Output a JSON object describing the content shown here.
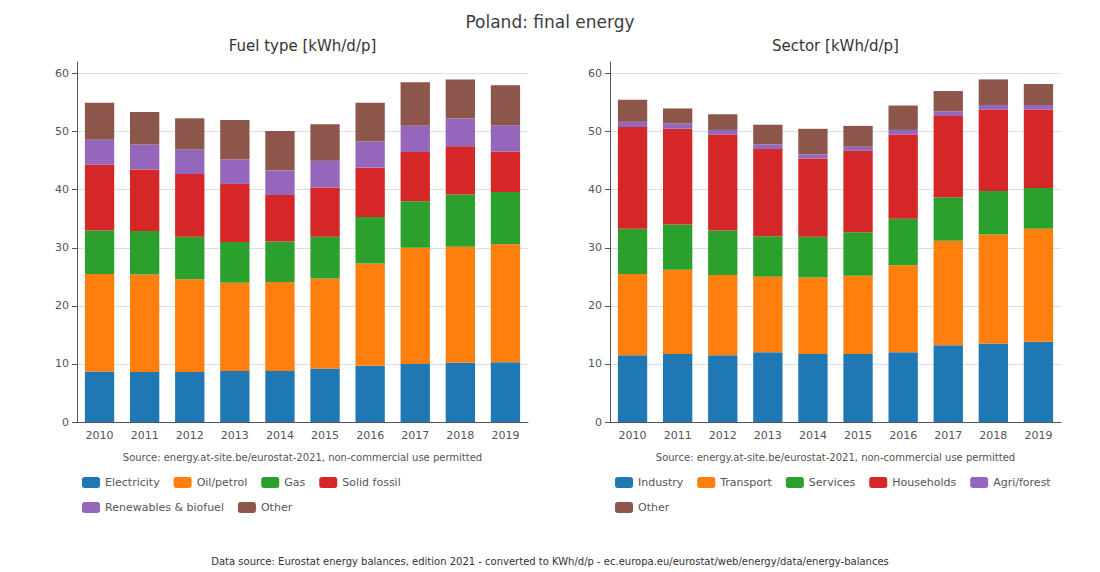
{
  "title": "Poland: final energy",
  "annotations": [
    "Data source: Eurostat energy balances, edition 2021 - converted to KWh/d/p - ec.europa.eu/eurostat/web/energy/data/energy-balances"
  ],
  "chart_data": [
    {
      "type": "bar",
      "title": "Fuel type [kWh/d/p]",
      "stacked": true,
      "grid": true,
      "legend": "bottom",
      "annotations": [
        "Source: energy.at-site.be/eurostat-2021, non-commercial use permitted"
      ],
      "categories": [
        "2010",
        "2011",
        "2012",
        "2013",
        "2014",
        "2015",
        "2016",
        "2017",
        "2018",
        "2019"
      ],
      "series": [
        {
          "name": "Electricity",
          "color": "#1f77b4",
          "values": [
            8.7,
            8.6,
            8.6,
            8.8,
            8.8,
            9.2,
            9.7,
            10.0,
            10.2,
            10.3
          ]
        },
        {
          "name": "Oil/petrol",
          "color": "#ff7f0e",
          "values": [
            16.8,
            16.8,
            16.0,
            15.2,
            15.3,
            15.5,
            17.6,
            20.0,
            20.0,
            20.3
          ]
        },
        {
          "name": "Gas",
          "color": "#2ca02c",
          "values": [
            7.5,
            7.5,
            7.3,
            7.0,
            7.0,
            7.2,
            8.0,
            8.0,
            9.0,
            9.0
          ]
        },
        {
          "name": "Solid fossil",
          "color": "#d62728",
          "values": [
            11.3,
            10.6,
            10.8,
            10.0,
            8.0,
            8.5,
            8.5,
            8.5,
            8.3,
            7.0
          ]
        },
        {
          "name": "Renewables & biofuel",
          "color": "#9467bd",
          "values": [
            4.3,
            4.3,
            4.2,
            4.2,
            4.2,
            4.6,
            4.5,
            4.5,
            4.8,
            4.5
          ]
        },
        {
          "name": "Other",
          "color": "#8c564b",
          "values": [
            6.4,
            5.6,
            5.4,
            6.8,
            6.8,
            6.3,
            6.7,
            7.5,
            6.7,
            6.9
          ]
        }
      ],
      "ylim": [
        0,
        62
      ],
      "yticks": [
        0,
        10,
        20,
        30,
        40,
        50,
        60
      ]
    },
    {
      "type": "bar",
      "title": "Sector [kWh/d/p]",
      "stacked": true,
      "grid": true,
      "legend": "bottom",
      "annotations": [
        "Source: energy.at-site.be/eurostat-2021, non-commercial use permitted"
      ],
      "categories": [
        "2010",
        "2011",
        "2012",
        "2013",
        "2014",
        "2015",
        "2016",
        "2017",
        "2018",
        "2019"
      ],
      "series": [
        {
          "name": "Industry",
          "color": "#1f77b4",
          "values": [
            11.5,
            11.7,
            11.5,
            12.0,
            11.7,
            11.7,
            12.0,
            13.2,
            13.5,
            13.8
          ]
        },
        {
          "name": "Transport",
          "color": "#ff7f0e",
          "values": [
            14.0,
            14.5,
            13.8,
            13.0,
            13.2,
            13.5,
            15.0,
            18.0,
            18.8,
            19.5
          ]
        },
        {
          "name": "Services",
          "color": "#2ca02c",
          "values": [
            7.8,
            7.8,
            7.7,
            7.0,
            7.0,
            7.5,
            8.0,
            7.5,
            7.5,
            7.0
          ]
        },
        {
          "name": "Households",
          "color": "#d62728",
          "values": [
            17.5,
            16.5,
            16.5,
            15.0,
            13.5,
            14.0,
            14.5,
            14.0,
            14.0,
            13.5
          ]
        },
        {
          "name": "Agri/forest",
          "color": "#9467bd",
          "values": [
            0.9,
            0.9,
            0.8,
            0.8,
            0.7,
            0.7,
            0.8,
            0.8,
            0.8,
            0.8
          ]
        },
        {
          "name": "Other",
          "color": "#8c564b",
          "values": [
            3.8,
            2.6,
            2.7,
            3.4,
            4.4,
            3.6,
            4.2,
            3.5,
            4.4,
            3.6
          ]
        }
      ],
      "ylim": [
        0,
        62
      ],
      "yticks": [
        0,
        10,
        20,
        30,
        40,
        50,
        60
      ]
    }
  ]
}
